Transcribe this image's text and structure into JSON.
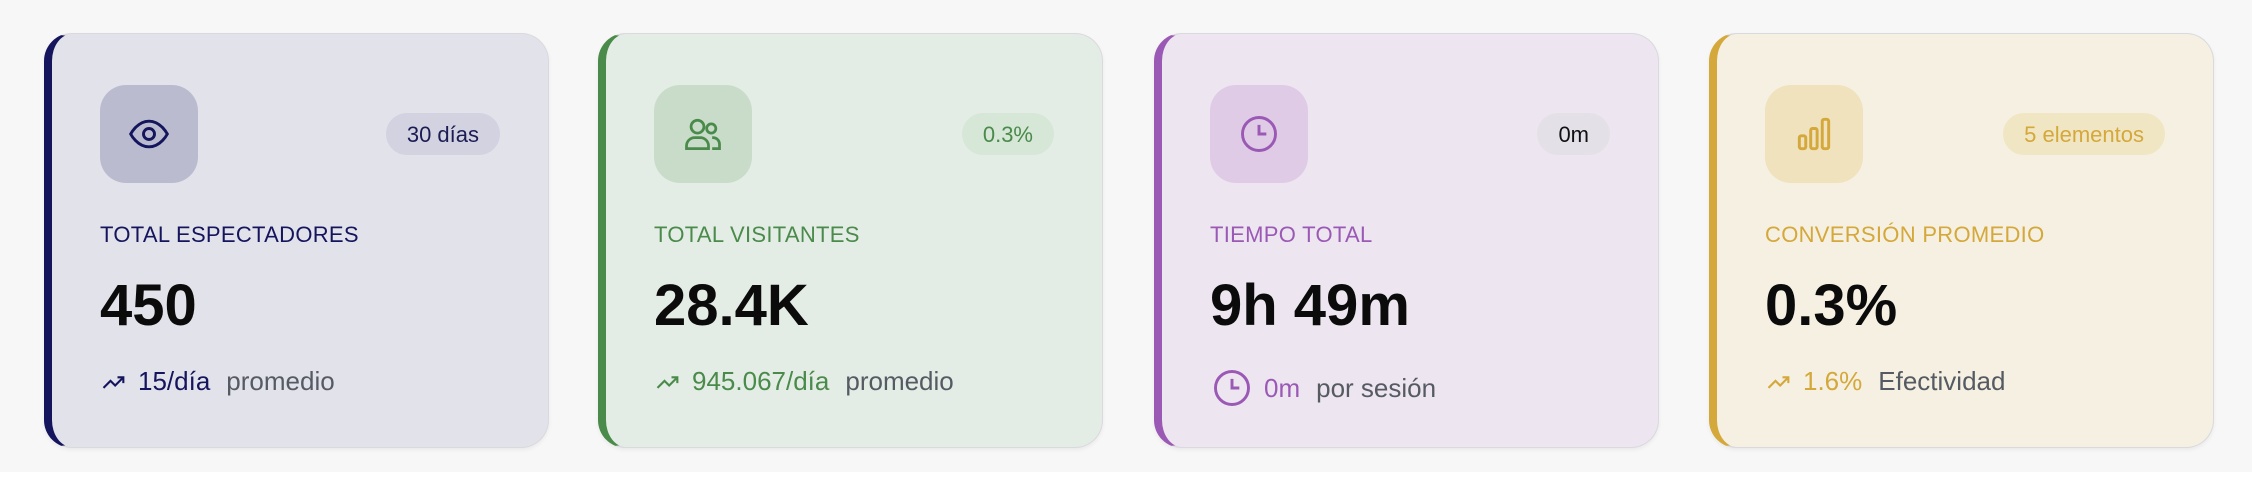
{
  "cards": [
    {
      "icon": "eye-icon",
      "badge": "30 días",
      "label": "TOTAL ESPECTADORES",
      "value": "450",
      "foot_icon": "trending-up-icon",
      "foot_value": "15/día",
      "foot_text": "promedio",
      "accent": "#15155e",
      "bg": "#e2e2ea",
      "iconbg": "#bbbbd0",
      "badgebg": "#d2d2e0"
    },
    {
      "icon": "users-icon",
      "badge": "0.3%",
      "label": "TOTAL VISITANTES",
      "value": "28.4K",
      "foot_icon": "trending-up-icon",
      "foot_value": "945.067/día",
      "foot_text": "promedio",
      "accent": "#4a8a4a",
      "bg": "#e4ede5",
      "iconbg": "#c9dcca",
      "badgebg": "#d6e6d7"
    },
    {
      "icon": "clock-icon",
      "badge": "0m",
      "label": "TIEMPO TOTAL",
      "value": "9h 49m",
      "foot_icon": "clock-icon",
      "foot_value": "0m",
      "foot_text": "por sesión",
      "accent": "#9b59b6",
      "bg": "#ede5ef",
      "iconbg": "#e0cbe6",
      "badgebg": "#e4e0e8"
    },
    {
      "icon": "bar-chart-icon",
      "badge": "5 elementos",
      "label": "CONVERSIÓN PROMEDIO",
      "value": "0.3%",
      "foot_icon": "trending-up-icon",
      "foot_value": "1.6%",
      "foot_text": "Efectividad",
      "accent": "#d4a83a",
      "bg": "#f5f0e1",
      "iconbg": "#efe2bc",
      "badgebg": "#f1e6c4"
    }
  ]
}
